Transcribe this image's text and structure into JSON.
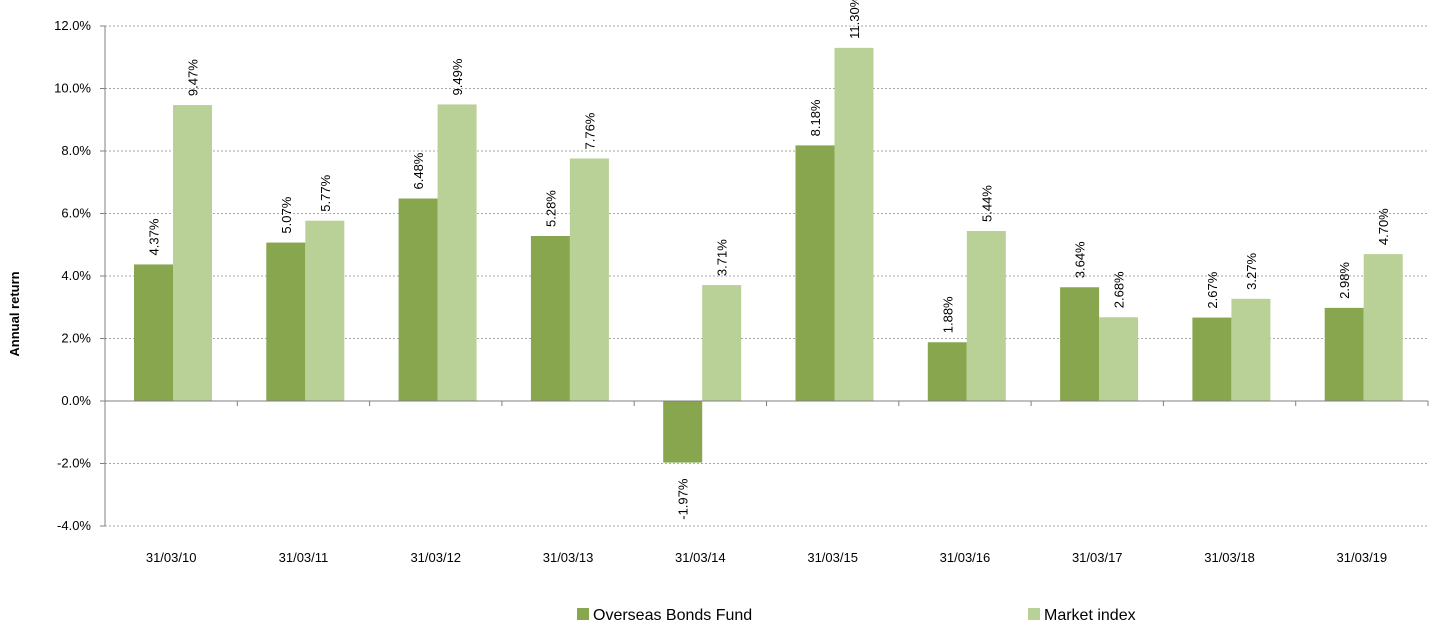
{
  "chart_data": {
    "type": "bar",
    "title": "",
    "xlabel": "",
    "ylabel": "Annual return",
    "ylim": [
      -4.0,
      12.0
    ],
    "y_tick_step": 2.0,
    "y_tick_format": "percent_1dp",
    "grid": true,
    "legend_position": "bottom",
    "categories": [
      "31/03/10",
      "31/03/11",
      "31/03/12",
      "31/03/13",
      "31/03/14",
      "31/03/15",
      "31/03/16",
      "31/03/17",
      "31/03/18",
      "31/03/19"
    ],
    "series": [
      {
        "name": "Overseas Bonds Fund",
        "color": "#87a64e",
        "values": [
          4.37,
          5.07,
          6.48,
          5.28,
          -1.97,
          8.18,
          1.88,
          3.64,
          2.67,
          2.98
        ],
        "labels": [
          "4.37%",
          "5.07%",
          "6.48%",
          "5.28%",
          "-1.97%",
          "8.18%",
          "1.88%",
          "3.64%",
          "2.67%",
          "2.98%"
        ]
      },
      {
        "name": "Market index",
        "color": "#b9d096",
        "values": [
          9.47,
          5.77,
          9.49,
          7.76,
          3.71,
          11.3,
          5.44,
          2.68,
          3.27,
          4.7
        ],
        "labels": [
          "9.47%",
          "5.77%",
          "9.49%",
          "7.76%",
          "3.71%",
          "11.30%",
          "5.44%",
          "2.68%",
          "3.27%",
          "4.70%"
        ]
      }
    ]
  },
  "colors": {
    "grid": "#a6a6a6",
    "axis": "#808080"
  }
}
